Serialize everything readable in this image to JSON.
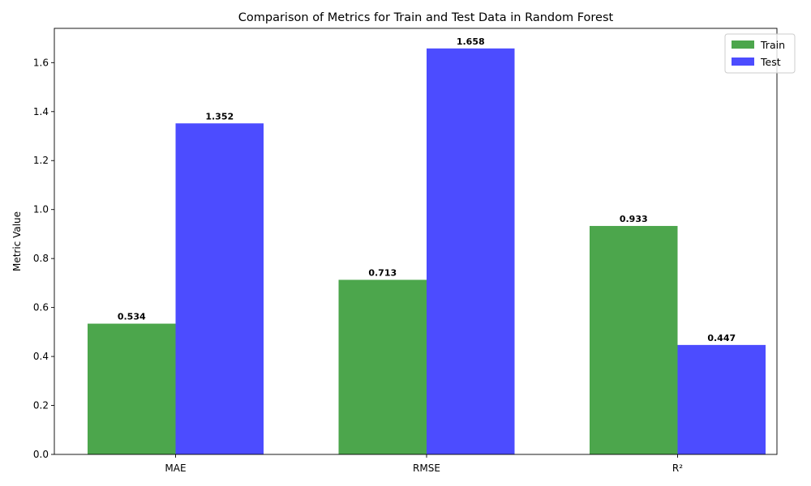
{
  "chart_data": {
    "type": "bar",
    "title": "Comparison of Metrics for Train and Test Data in Random Forest",
    "xlabel": "",
    "ylabel": "Metric Value",
    "categories": [
      "MAE",
      "RMSE",
      "R²"
    ],
    "series": [
      {
        "name": "Train",
        "color": "#4ca64c",
        "values": [
          0.534,
          0.713,
          0.933
        ],
        "labels": [
          "0.534",
          "0.713",
          "0.933"
        ]
      },
      {
        "name": "Test",
        "color": "#4c4cff",
        "values": [
          1.352,
          1.658,
          0.447
        ],
        "labels": [
          "1.352",
          "1.658",
          "0.447"
        ]
      }
    ],
    "ylim": [
      0,
      1.74
    ],
    "yticks": [
      "0.0",
      "0.2",
      "0.4",
      "0.6",
      "0.8",
      "1.0",
      "1.2",
      "1.4",
      "1.6"
    ],
    "grid": false,
    "legend_position": "top-right"
  }
}
